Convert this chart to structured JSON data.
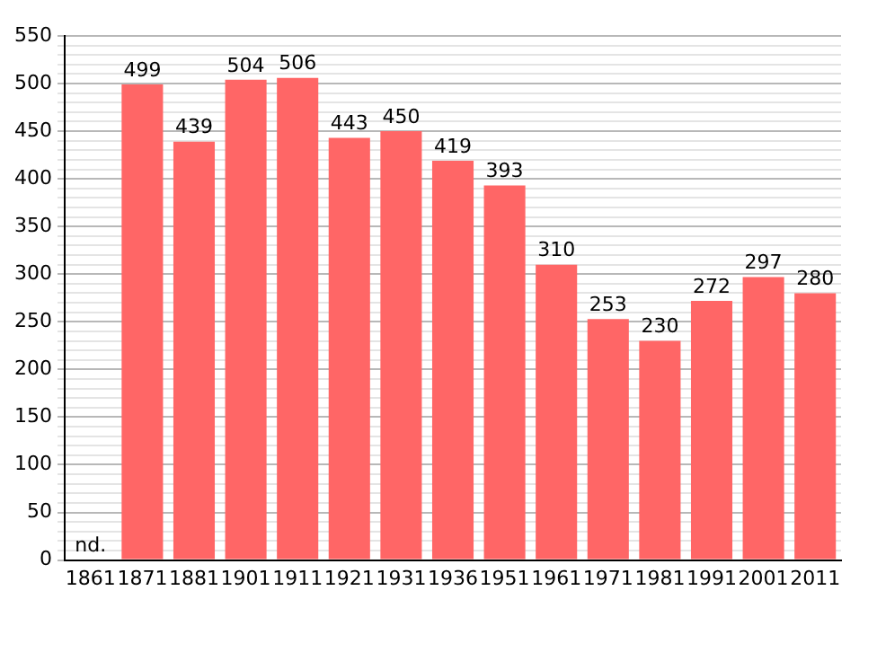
{
  "chart_data": {
    "type": "bar",
    "categories": [
      "1861",
      "1871",
      "1881",
      "1901",
      "1911",
      "1921",
      "1931",
      "1936",
      "1951",
      "1961",
      "1971",
      "1981",
      "1991",
      "2001",
      "2011"
    ],
    "values": [
      null,
      499,
      439,
      504,
      506,
      443,
      450,
      419,
      393,
      310,
      253,
      230,
      272,
      297,
      280
    ],
    "value_labels": [
      "nd.",
      "499",
      "439",
      "504",
      "506",
      "443",
      "450",
      "419",
      "393",
      "310",
      "253",
      "230",
      "272",
      "297",
      "280"
    ],
    "color": "#ff6666",
    "ylim": [
      0,
      550
    ],
    "yticks": [
      0,
      {
        "value": 10,
        "label": null
      },
      {
        "value": 20,
        "label": null
      },
      {
        "value": 30,
        "label": null
      },
      {
        "value": 40,
        "label": null
      },
      50,
      {
        "value": 60,
        "label": null
      },
      {
        "value": 70,
        "label": null
      },
      {
        "value": 80,
        "label": null
      },
      {
        "value": 90,
        "label": null
      },
      100,
      {
        "value": 110,
        "label": null
      },
      {
        "value": 120,
        "label": null
      },
      {
        "value": 130,
        "label": null
      },
      {
        "value": 140,
        "label": null
      },
      150,
      {
        "value": 160,
        "label": null
      },
      {
        "value": 170,
        "label": null
      },
      {
        "value": 180,
        "label": null
      },
      {
        "value": 190,
        "label": null
      },
      200,
      {
        "value": 210,
        "label": null
      },
      {
        "value": 220,
        "label": null
      },
      {
        "value": 230,
        "label": null
      },
      {
        "value": 240,
        "label": null
      },
      250,
      {
        "value": 260,
        "label": null
      },
      {
        "value": 270,
        "label": null
      },
      {
        "value": 280,
        "label": null
      },
      {
        "value": 290,
        "label": null
      },
      300,
      {
        "value": 310,
        "label": null
      },
      {
        "value": 320,
        "label": null
      },
      {
        "value": 330,
        "label": null
      },
      {
        "value": 340,
        "label": null
      },
      350,
      {
        "value": 360,
        "label": null
      },
      {
        "value": 370,
        "label": null
      },
      {
        "value": 380,
        "label": null
      },
      {
        "value": 390,
        "label": null
      },
      400,
      {
        "value": 410,
        "label": null
      },
      {
        "value": 420,
        "label": null
      },
      {
        "value": 430,
        "label": null
      },
      {
        "value": 440,
        "label": null
      },
      450,
      {
        "value": 460,
        "label": null
      },
      {
        "value": 470,
        "label": null
      },
      {
        "value": 480,
        "label": null
      },
      {
        "value": 490,
        "label": null
      },
      500,
      {
        "value": 510,
        "label": null
      },
      {
        "value": 520,
        "label": null
      },
      {
        "value": 530,
        "label": null
      },
      {
        "value": 540,
        "label": null
      },
      550
    ],
    "grid": "y",
    "legend": false
  }
}
